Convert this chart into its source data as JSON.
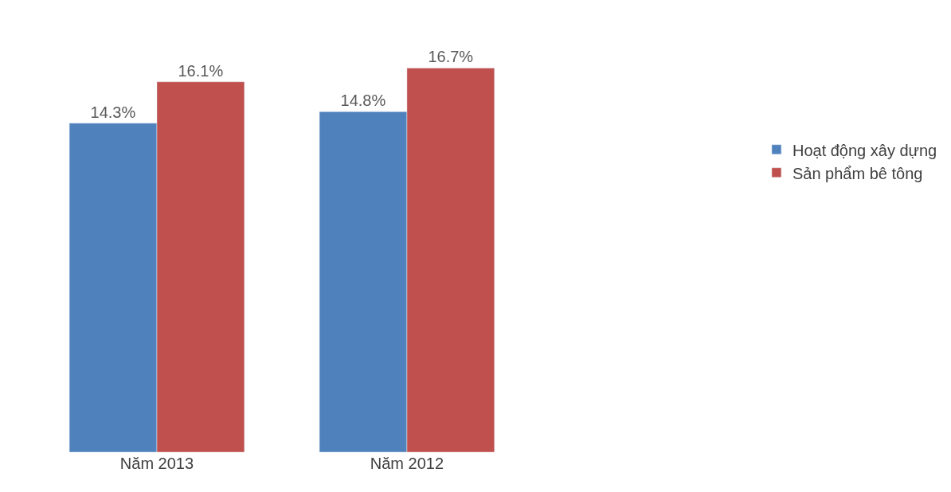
{
  "chart_data": {
    "type": "bar",
    "categories": [
      "Năm 2013",
      "Năm 2012"
    ],
    "series": [
      {
        "name": "Hoạt động xây dựng",
        "color": "#4f81bd",
        "values": [
          14.3,
          14.8
        ],
        "value_labels": [
          "14.3%",
          "14.8%"
        ]
      },
      {
        "name": "Sản phẩm bê tông",
        "color": "#c0504d",
        "values": [
          16.1,
          16.7
        ],
        "value_labels": [
          "16.1%",
          "16.7%"
        ]
      }
    ],
    "legend": "right",
    "tick_labels": "x"
  }
}
